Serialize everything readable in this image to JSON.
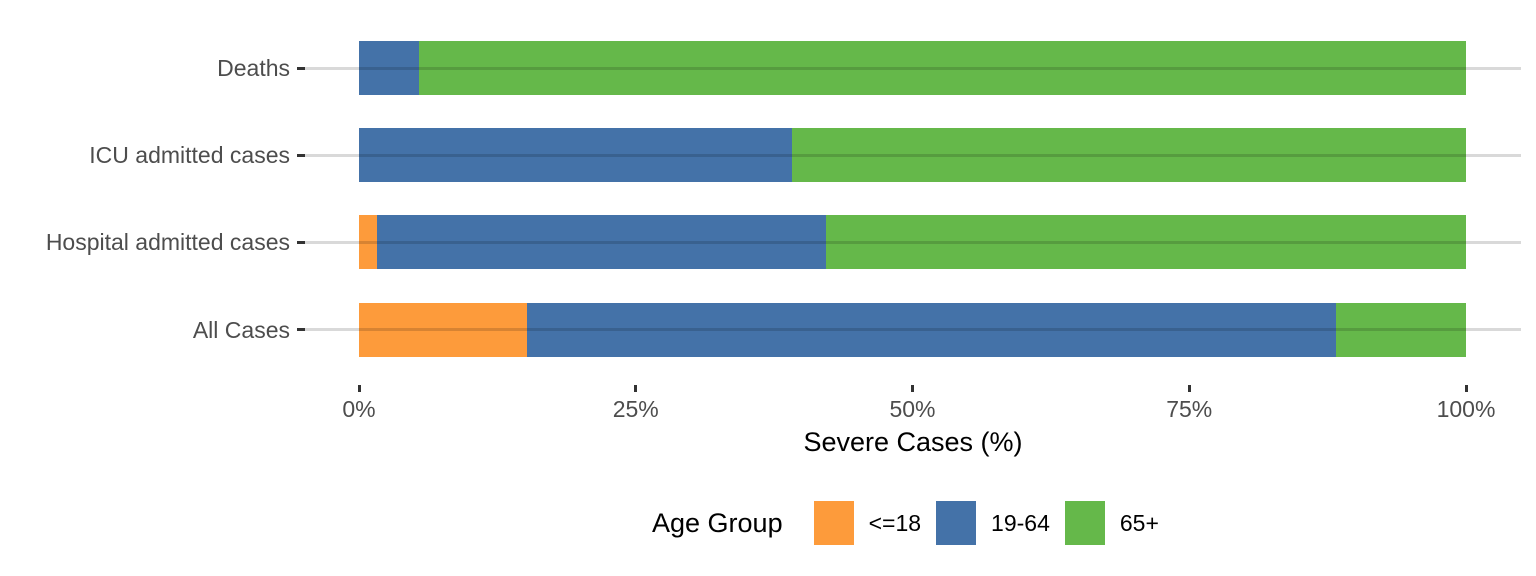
{
  "chart_data": {
    "type": "bar",
    "orientation": "horizontal",
    "stacked": true,
    "percent_scale": true,
    "title": "",
    "xlabel": "Severe Cases (%)",
    "ylabel": "",
    "xlim": [
      0,
      100
    ],
    "x_tick_values": [
      0,
      25,
      50,
      75,
      100
    ],
    "x_tick_labels": [
      "0%",
      "25%",
      "50%",
      "75%",
      "100%"
    ],
    "grid": "horizontal-only",
    "legend_position": "bottom",
    "legend_title": "Age Group",
    "categories_top_to_bottom": [
      "Deaths",
      "ICU admitted cases",
      "Hospital admitted cases",
      "All Cases"
    ],
    "series": [
      {
        "name": "<=18",
        "color": "#FD9B3B",
        "values": [
          0,
          0,
          1.6,
          15.2
        ]
      },
      {
        "name": "19-64",
        "color": "#4472A8",
        "values": [
          5.4,
          39.1,
          40.6,
          73.1
        ]
      },
      {
        "name": "65+",
        "color": "#65B84A",
        "values": [
          94.6,
          60.9,
          57.8,
          11.7
        ]
      }
    ]
  },
  "colors": {
    "tick_mark": "#333333",
    "tick_label": "#4d4d4d",
    "gridline_over_white": "#d9d9d9",
    "background": "#ffffff"
  }
}
